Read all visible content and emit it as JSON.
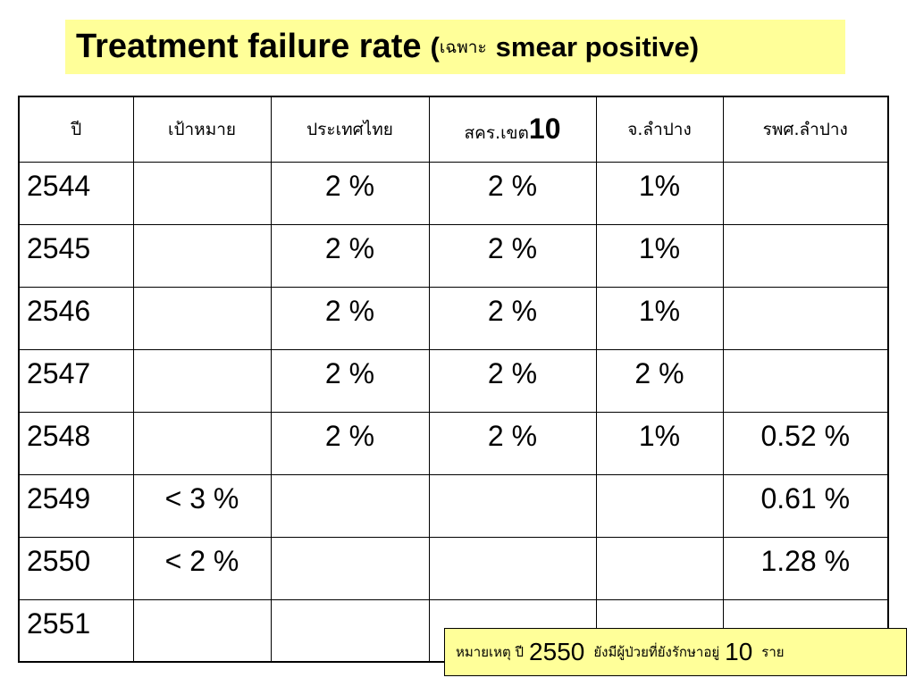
{
  "title": {
    "main": "Treatment failure rate",
    "paren_open": "(",
    "thai": "เฉพาะ",
    "english": "smear positive",
    "paren_close": ")"
  },
  "table": {
    "headers": [
      {
        "text": "ปี"
      },
      {
        "text": "เป้าหมาย"
      },
      {
        "text": "ประเทศไทย"
      },
      {
        "text": "สคร.เขต",
        "num": "10"
      },
      {
        "text": "จ.ลำปาง"
      },
      {
        "text": "รพศ.ลำปาง"
      }
    ],
    "rows": [
      [
        "2544",
        "",
        "2 %",
        "2 %",
        "1%",
        ""
      ],
      [
        "2545",
        "",
        "2 %",
        "2 %",
        "1%",
        ""
      ],
      [
        "2546",
        "",
        "2 %",
        "2 %",
        "1%",
        ""
      ],
      [
        "2547",
        "",
        "2 %",
        "2 %",
        "2 %",
        ""
      ],
      [
        "2548",
        "",
        "2 %",
        "2 %",
        "1%",
        "0.52 %"
      ],
      [
        "2549",
        "< 3 %",
        "",
        "",
        "",
        "0.61 %"
      ],
      [
        "2550",
        "< 2 %",
        "",
        "",
        "",
        "1.28 %"
      ],
      [
        "2551",
        "",
        "",
        "",
        "",
        ""
      ]
    ]
  },
  "note": {
    "part1": "หมายเหตุ ปี",
    "year": "2550",
    "part2": "ยังมีผู้ป่วยที่ยังรักษาอยู่",
    "count": "10",
    "part3": "ราย"
  },
  "colors": {
    "highlight_bg": "#ffff99",
    "border": "#000000"
  }
}
